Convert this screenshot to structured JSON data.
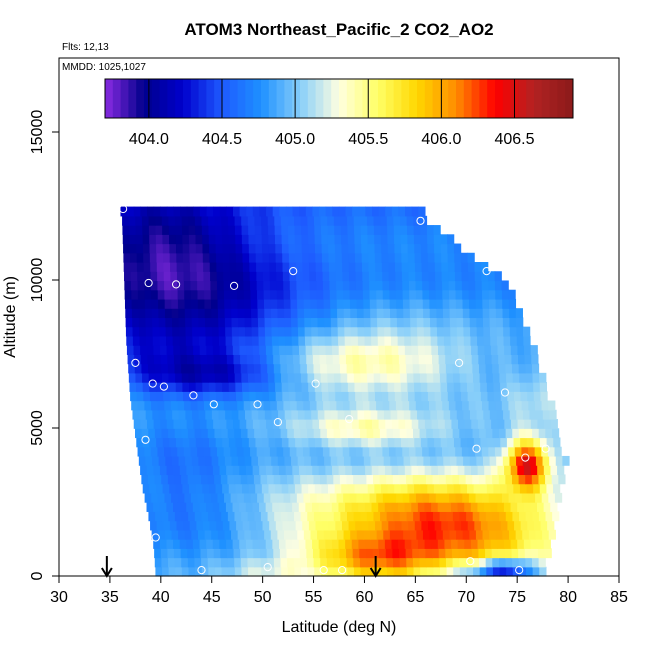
{
  "chart_data": {
    "type": "heatmap",
    "title": "ATOM3 Northeast_Pacific_2 CO2_AO2",
    "notes": [
      "Flts: 12,13",
      "MMDD: 1025,1027"
    ],
    "xlabel": "Latitude (deg N)",
    "ylabel": "Altitude (m)",
    "xlim": [
      30,
      85
    ],
    "ylim": [
      0,
      17500
    ],
    "x_ticks": [
      30,
      35,
      40,
      45,
      50,
      55,
      60,
      65,
      70,
      75,
      80,
      85
    ],
    "y_ticks": [
      0,
      5000,
      10000,
      15000
    ],
    "y_tick_labels": [
      "0",
      "5000",
      "10000",
      "15000"
    ],
    "colorbar": {
      "min": 403.7,
      "max": 406.9,
      "ticks": [
        404.0,
        404.5,
        405.0,
        405.5,
        406.0,
        406.5
      ],
      "tick_labels": [
        "404.0",
        "404.5",
        "405.0",
        "405.5",
        "406.0",
        "406.5"
      ],
      "colors": [
        "#8a2be2",
        "#00008b",
        "#0000cd",
        "#1e5aff",
        "#1e90ff",
        "#87cefa",
        "#ffffe0",
        "#ffff66",
        "#ffd700",
        "#ff8c00",
        "#ff0000",
        "#b22222",
        "#8b1a1a"
      ]
    },
    "flight_markers": [
      34.7,
      61.1
    ],
    "heatmap": {
      "cell_lat": 0.65,
      "cell_alt": 312,
      "boundary": [
        {
          "alt": 0,
          "lat_min": 39.5,
          "lat_max": 77.5
        },
        {
          "alt": 1000,
          "lat_min": 39.3,
          "lat_max": 78.0
        },
        {
          "alt": 2000,
          "lat_min": 38.8,
          "lat_max": 78.5
        },
        {
          "alt": 3000,
          "lat_min": 38.2,
          "lat_max": 79.0
        },
        {
          "alt": 4000,
          "lat_min": 37.8,
          "lat_max": 79.5
        },
        {
          "alt": 5000,
          "lat_min": 37.4,
          "lat_max": 78.5
        },
        {
          "alt": 6000,
          "lat_min": 37.0,
          "lat_max": 78.0
        },
        {
          "alt": 7000,
          "lat_min": 36.8,
          "lat_max": 77.0
        },
        {
          "alt": 8000,
          "lat_min": 36.6,
          "lat_max": 76.0
        },
        {
          "alt": 9000,
          "lat_min": 36.5,
          "lat_max": 75.0
        },
        {
          "alt": 10000,
          "lat_min": 36.4,
          "lat_max": 73.5
        },
        {
          "alt": 11000,
          "lat_min": 36.3,
          "lat_max": 69.5
        },
        {
          "alt": 12000,
          "lat_min": 36.2,
          "lat_max": 66.0
        },
        {
          "alt": 12400,
          "lat_min": 36.0,
          "lat_max": 65.5
        }
      ],
      "features": [
        {
          "lat": 42,
          "alt": 9000,
          "sx": 8,
          "sy": 1800,
          "amp": -0.75
        },
        {
          "lat": 40,
          "alt": 11500,
          "sx": 6,
          "sy": 1200,
          "amp": -0.5
        },
        {
          "lat": 45,
          "alt": 6800,
          "sx": 5,
          "sy": 500,
          "amp": -0.45
        },
        {
          "lat": 42,
          "alt": 3000,
          "sx": 4,
          "sy": 1500,
          "amp": -0.3
        },
        {
          "lat": 59,
          "alt": 7200,
          "sx": 7,
          "sy": 700,
          "amp": 0.55
        },
        {
          "lat": 60,
          "alt": 5000,
          "sx": 5,
          "sy": 450,
          "amp": 0.5
        },
        {
          "lat": 63,
          "alt": 8000,
          "sx": 6,
          "sy": 1200,
          "amp": 0.15
        },
        {
          "lat": 70,
          "alt": 1400,
          "sx": 7,
          "sy": 1200,
          "amp": 1.1
        },
        {
          "lat": 64,
          "alt": 2200,
          "sx": 6,
          "sy": 900,
          "amp": 0.55
        },
        {
          "lat": 61,
          "alt": 600,
          "sx": 4,
          "sy": 600,
          "amp": 0.75
        },
        {
          "lat": 55,
          "alt": 1500,
          "sx": 4,
          "sy": 1200,
          "amp": 0.3
        },
        {
          "lat": 76,
          "alt": 3800,
          "sx": 1.5,
          "sy": 600,
          "amp": 1.5
        },
        {
          "lat": 77,
          "alt": 6000,
          "sx": 2,
          "sy": 900,
          "amp": 0.2
        },
        {
          "lat": 74,
          "alt": 200,
          "sx": 2,
          "sy": 300,
          "amp": -1.0
        },
        {
          "lat": 70,
          "alt": 200,
          "sx": 3,
          "sy": 250,
          "amp": -0.4
        },
        {
          "lat": 50,
          "alt": 200,
          "sx": 3,
          "sy": 250,
          "amp": 0.2
        }
      ],
      "baseline": 404.9
    },
    "sample_points": [
      [
        36.3,
        12400
      ],
      [
        65.5,
        12000
      ],
      [
        53.0,
        10300
      ],
      [
        72.0,
        10300
      ],
      [
        38.8,
        9900
      ],
      [
        41.5,
        9850
      ],
      [
        47.2,
        9800
      ],
      [
        37.5,
        7200
      ],
      [
        69.3,
        7200
      ],
      [
        39.2,
        6500
      ],
      [
        40.3,
        6400
      ],
      [
        55.2,
        6500
      ],
      [
        43.2,
        6100
      ],
      [
        45.2,
        5800
      ],
      [
        49.5,
        5800
      ],
      [
        73.8,
        6200
      ],
      [
        51.5,
        5200
      ],
      [
        58.5,
        5300
      ],
      [
        38.5,
        4600
      ],
      [
        71.0,
        4300
      ],
      [
        77.8,
        4300
      ],
      [
        75.8,
        4000
      ],
      [
        39.5,
        1300
      ],
      [
        44.0,
        200
      ],
      [
        50.5,
        300
      ],
      [
        56.0,
        200
      ],
      [
        57.8,
        200
      ],
      [
        70.4,
        500
      ],
      [
        75.2,
        200
      ]
    ]
  }
}
